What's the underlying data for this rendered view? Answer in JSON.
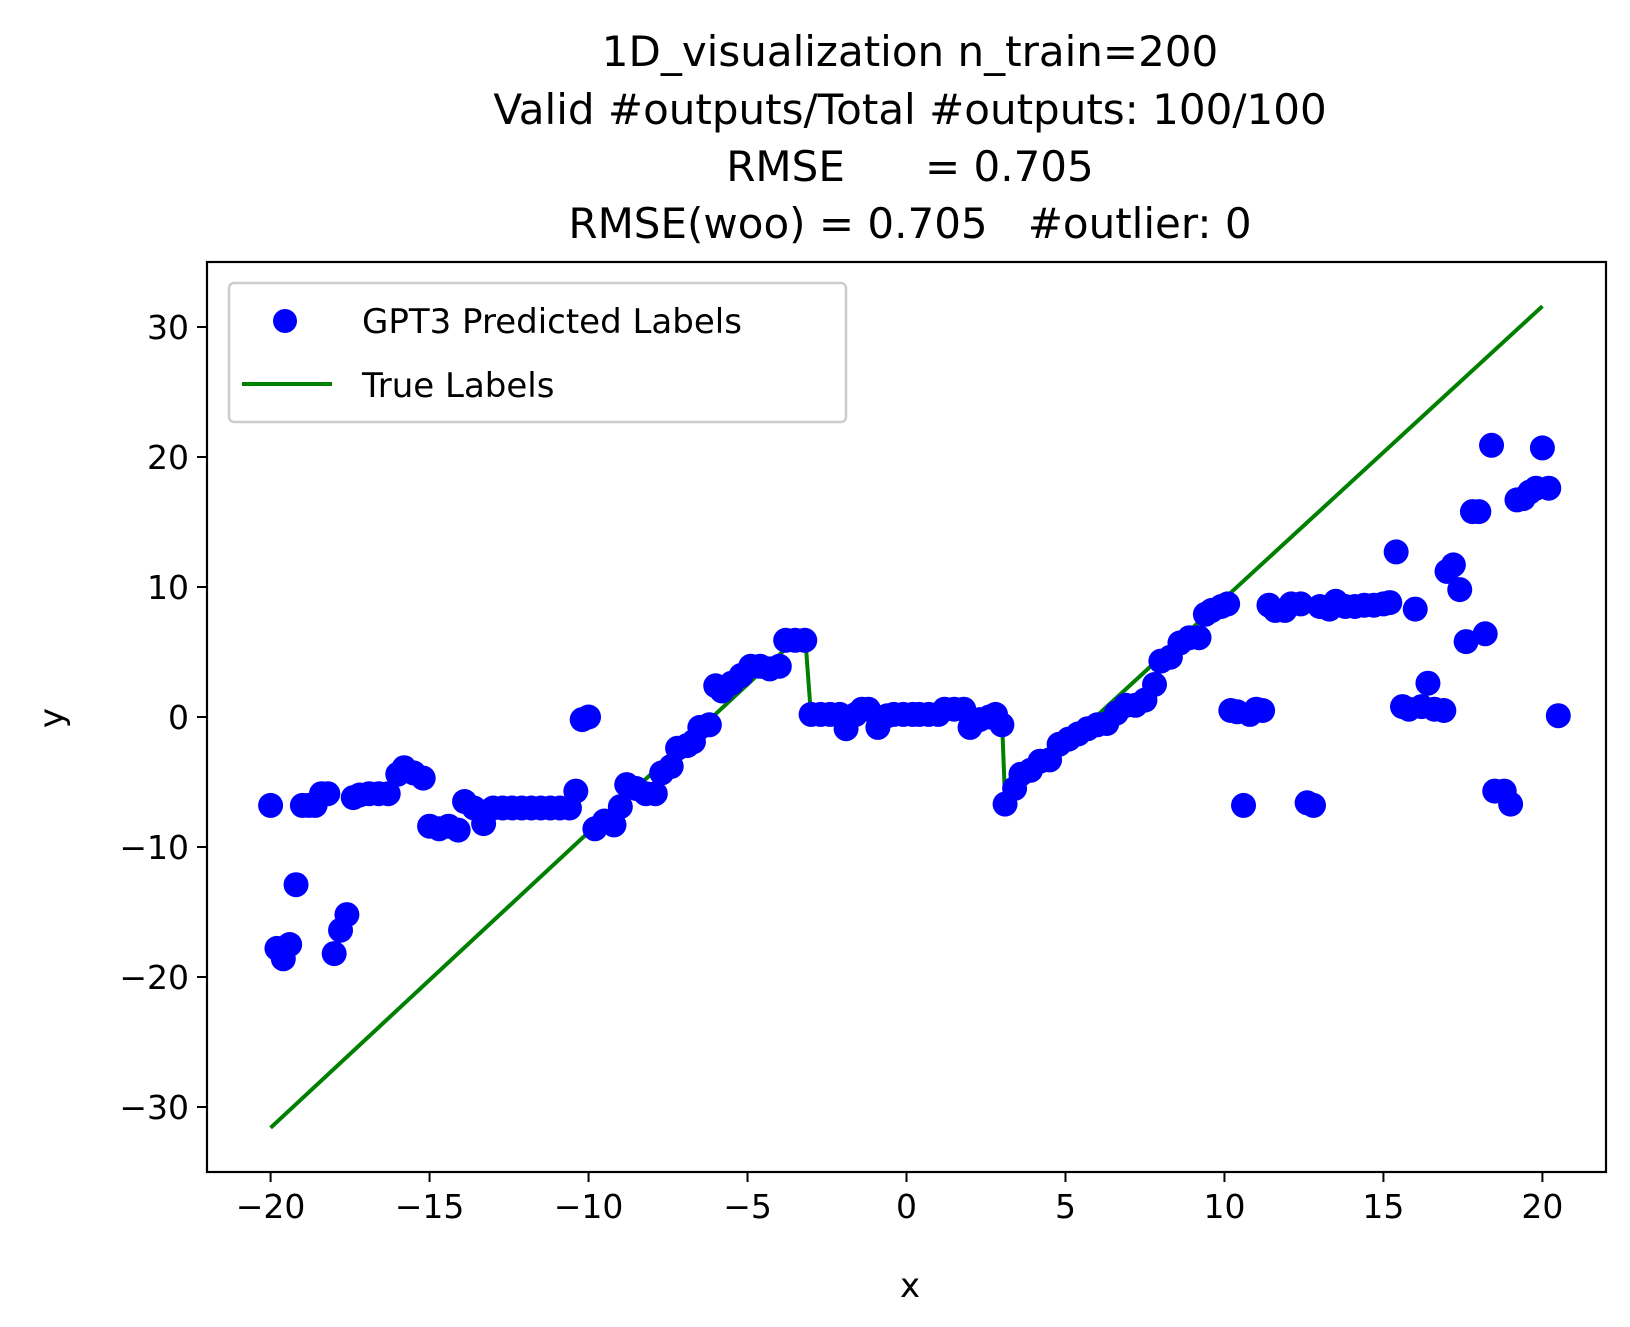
{
  "chart_data": {
    "type": "scatter",
    "title_lines": [
      "1D_visualization  n_train=200",
      "Valid #outputs/Total #outputs: 100/100",
      "RMSE      = 0.705",
      "RMSE(woo) = 0.705   #outlier: 0"
    ],
    "xlabel": "x",
    "ylabel": "y",
    "xlim": [
      -22,
      22
    ],
    "ylim": [
      -35,
      35
    ],
    "xticks": [
      -20,
      -15,
      -10,
      -5,
      0,
      5,
      10,
      15,
      20
    ],
    "yticks": [
      -30,
      -20,
      -10,
      0,
      10,
      20,
      30
    ],
    "xtick_labels": [
      "−20",
      "−15",
      "−10",
      "−5",
      "0",
      "5",
      "10",
      "15",
      "20"
    ],
    "ytick_labels": [
      "−30",
      "−20",
      "−10",
      "0",
      "10",
      "20",
      "30"
    ],
    "grid": false,
    "legend_position": "top-left",
    "colors": {
      "scatter": "#0000ff",
      "line": "#008000"
    },
    "series": [
      {
        "name": "GPT3 Predicted Labels",
        "kind": "scatter",
        "color": "#0000ff",
        "points": [
          [
            -20.0,
            -6.8
          ],
          [
            -19.8,
            -17.8
          ],
          [
            -19.6,
            -18.6
          ],
          [
            -19.4,
            -17.5
          ],
          [
            -19.2,
            -12.9
          ],
          [
            -19.0,
            -6.8
          ],
          [
            -18.8,
            -6.8
          ],
          [
            -18.6,
            -6.8
          ],
          [
            -18.4,
            -5.9
          ],
          [
            -18.2,
            -5.9
          ],
          [
            -18.0,
            -18.2
          ],
          [
            -17.8,
            -16.4
          ],
          [
            -17.6,
            -15.2
          ],
          [
            -17.4,
            -6.2
          ],
          [
            -17.2,
            -6.0
          ],
          [
            -16.9,
            -5.9
          ],
          [
            -16.6,
            -5.9
          ],
          [
            -16.3,
            -5.9
          ],
          [
            -16.0,
            -4.4
          ],
          [
            -15.8,
            -3.9
          ],
          [
            -15.5,
            -4.3
          ],
          [
            -15.2,
            -4.7
          ],
          [
            -15.0,
            -8.4
          ],
          [
            -14.7,
            -8.6
          ],
          [
            -14.4,
            -8.4
          ],
          [
            -14.1,
            -8.7
          ],
          [
            -13.9,
            -6.5
          ],
          [
            -13.6,
            -7.0
          ],
          [
            -13.3,
            -8.2
          ],
          [
            -13.0,
            -7.0
          ],
          [
            -12.7,
            -7.0
          ],
          [
            -12.4,
            -7.0
          ],
          [
            -12.1,
            -7.0
          ],
          [
            -11.8,
            -7.0
          ],
          [
            -11.5,
            -7.0
          ],
          [
            -11.2,
            -7.0
          ],
          [
            -10.9,
            -7.0
          ],
          [
            -10.6,
            -7.0
          ],
          [
            -10.4,
            -5.7
          ],
          [
            -10.2,
            -0.2
          ],
          [
            -10.0,
            0.0
          ],
          [
            -9.8,
            -8.6
          ],
          [
            -9.5,
            -8.0
          ],
          [
            -9.2,
            -8.3
          ],
          [
            -9.0,
            -6.9
          ],
          [
            -8.8,
            -5.2
          ],
          [
            -8.5,
            -5.5
          ],
          [
            -8.2,
            -5.9
          ],
          [
            -7.9,
            -5.9
          ],
          [
            -7.7,
            -4.3
          ],
          [
            -7.4,
            -3.8
          ],
          [
            -7.2,
            -2.4
          ],
          [
            -6.9,
            -2.2
          ],
          [
            -6.7,
            -1.9
          ],
          [
            -6.5,
            -0.8
          ],
          [
            -6.2,
            -0.6
          ],
          [
            -6.0,
            2.4
          ],
          [
            -5.8,
            2.0
          ],
          [
            -5.5,
            2.6
          ],
          [
            -5.2,
            3.2
          ],
          [
            -4.9,
            3.9
          ],
          [
            -4.6,
            3.9
          ],
          [
            -4.3,
            3.7
          ],
          [
            -4.0,
            3.9
          ],
          [
            -3.8,
            5.9
          ],
          [
            -3.5,
            5.9
          ],
          [
            -3.2,
            5.9
          ],
          [
            -3.0,
            0.2
          ],
          [
            -2.7,
            0.2
          ],
          [
            -2.4,
            0.2
          ],
          [
            -2.1,
            0.2
          ],
          [
            -1.9,
            -0.9
          ],
          [
            -1.6,
            0.2
          ],
          [
            -1.4,
            0.6
          ],
          [
            -1.2,
            0.6
          ],
          [
            -0.9,
            -0.8
          ],
          [
            -0.6,
            0.1
          ],
          [
            -0.4,
            0.2
          ],
          [
            -0.1,
            0.2
          ],
          [
            0.2,
            0.2
          ],
          [
            0.4,
            0.2
          ],
          [
            0.7,
            0.2
          ],
          [
            1.0,
            0.2
          ],
          [
            1.2,
            0.6
          ],
          [
            1.5,
            0.6
          ],
          [
            1.8,
            0.6
          ],
          [
            2.0,
            -0.8
          ],
          [
            2.3,
            -0.2
          ],
          [
            2.6,
            0.0
          ],
          [
            2.8,
            0.2
          ],
          [
            3.0,
            -0.6
          ],
          [
            3.1,
            -6.7
          ],
          [
            3.4,
            -5.5
          ],
          [
            3.6,
            -4.4
          ],
          [
            3.9,
            -4.1
          ],
          [
            4.2,
            -3.4
          ],
          [
            4.5,
            -3.3
          ],
          [
            4.8,
            -2.1
          ],
          [
            5.1,
            -1.7
          ],
          [
            5.4,
            -1.3
          ],
          [
            5.7,
            -0.9
          ],
          [
            6.0,
            -0.6
          ],
          [
            6.3,
            -0.5
          ],
          [
            6.6,
            0.3
          ],
          [
            6.9,
            0.9
          ],
          [
            7.2,
            0.9
          ],
          [
            7.5,
            1.3
          ],
          [
            7.8,
            2.5
          ],
          [
            8.0,
            4.3
          ],
          [
            8.3,
            4.6
          ],
          [
            8.6,
            5.7
          ],
          [
            8.9,
            6.1
          ],
          [
            9.2,
            6.1
          ],
          [
            9.4,
            7.9
          ],
          [
            9.6,
            8.2
          ],
          [
            9.9,
            8.5
          ],
          [
            10.1,
            8.7
          ],
          [
            10.2,
            0.5
          ],
          [
            10.4,
            0.4
          ],
          [
            10.6,
            -6.8
          ],
          [
            10.8,
            0.2
          ],
          [
            11.0,
            0.6
          ],
          [
            11.2,
            0.5
          ],
          [
            11.4,
            8.6
          ],
          [
            11.6,
            8.2
          ],
          [
            11.9,
            8.2
          ],
          [
            12.1,
            8.7
          ],
          [
            12.4,
            8.7
          ],
          [
            12.6,
            -6.6
          ],
          [
            12.8,
            -6.8
          ],
          [
            13.0,
            8.5
          ],
          [
            13.3,
            8.3
          ],
          [
            13.5,
            8.9
          ],
          [
            13.8,
            8.5
          ],
          [
            14.1,
            8.5
          ],
          [
            14.4,
            8.6
          ],
          [
            14.7,
            8.6
          ],
          [
            15.0,
            8.7
          ],
          [
            15.2,
            8.8
          ],
          [
            15.4,
            12.7
          ],
          [
            15.6,
            0.8
          ],
          [
            15.8,
            0.6
          ],
          [
            16.0,
            8.3
          ],
          [
            16.2,
            0.8
          ],
          [
            16.4,
            2.6
          ],
          [
            16.6,
            0.6
          ],
          [
            16.9,
            0.5
          ],
          [
            17.0,
            11.2
          ],
          [
            17.2,
            11.7
          ],
          [
            17.4,
            9.8
          ],
          [
            17.6,
            5.8
          ],
          [
            17.8,
            15.8
          ],
          [
            18.0,
            15.8
          ],
          [
            18.2,
            6.4
          ],
          [
            18.4,
            20.9
          ],
          [
            18.5,
            -5.7
          ],
          [
            18.8,
            -5.7
          ],
          [
            19.0,
            -6.7
          ],
          [
            19.2,
            16.7
          ],
          [
            19.4,
            16.8
          ],
          [
            19.6,
            17.3
          ],
          [
            19.8,
            17.6
          ],
          [
            20.0,
            20.7
          ],
          [
            20.2,
            17.6
          ],
          [
            20.5,
            0.1
          ]
        ]
      },
      {
        "name": "True Labels",
        "kind": "line",
        "color": "#008000",
        "points": [
          [
            -20.0,
            -31.6
          ],
          [
            -3.2,
            6.6
          ],
          [
            -3.0,
            0.0
          ],
          [
            3.0,
            0.0
          ],
          [
            3.1,
            -6.4
          ],
          [
            20.0,
            31.6
          ]
        ]
      }
    ]
  }
}
